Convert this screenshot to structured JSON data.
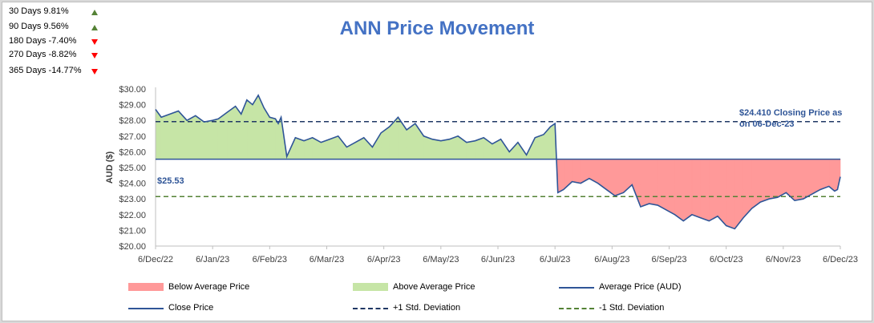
{
  "stats": [
    {
      "label": "30 Days 9.81%",
      "direction": "up"
    },
    {
      "label": "90 Days 9.56%",
      "direction": "up"
    },
    {
      "label": "180 Days -7.40%",
      "direction": "down"
    },
    {
      "label": "270 Days -8.82%",
      "direction": "down"
    },
    {
      "label": "365 Days -14.77%",
      "direction": "down"
    }
  ],
  "chart_data": {
    "type": "line",
    "title": "ANN Price Movement",
    "ylabel": "AUD ($)",
    "xlabel": "",
    "ylim": [
      20,
      30
    ],
    "y_ticks": [
      "$20.00",
      "$21.00",
      "$22.00",
      "$23.00",
      "$24.00",
      "$25.00",
      "$26.00",
      "$27.00",
      "$28.00",
      "$29.00",
      "$30.00"
    ],
    "x_ticks": [
      "6/Dec/22",
      "6/Jan/23",
      "6/Feb/23",
      "6/Mar/23",
      "6/Apr/23",
      "6/May/23",
      "6/Jun/23",
      "6/Jul/23",
      "6/Aug/23",
      "6/Sep/23",
      "6/Oct/23",
      "6/Nov/23",
      "6/Dec/23"
    ],
    "average_price": 25.53,
    "plus_1_std": 27.92,
    "minus_1_std": 23.15,
    "closing_price": 24.41,
    "annotations": {
      "closing": "$24.410 Closing Price as on 06-Dec-23",
      "average": "$25.53"
    },
    "series": [
      {
        "name": "Close Price",
        "x_month_index": [
          0,
          0.1,
          0.25,
          0.4,
          0.55,
          0.7,
          0.85,
          1.0,
          1.1,
          1.25,
          1.4,
          1.5,
          1.6,
          1.7,
          1.8,
          1.9,
          2.0,
          2.1,
          2.15,
          2.2,
          2.3,
          2.45,
          2.6,
          2.75,
          2.9,
          3.05,
          3.2,
          3.35,
          3.5,
          3.65,
          3.8,
          3.95,
          4.1,
          4.25,
          4.4,
          4.55,
          4.7,
          4.85,
          5.0,
          5.15,
          5.3,
          5.45,
          5.6,
          5.75,
          5.9,
          6.05,
          6.2,
          6.35,
          6.5,
          6.65,
          6.8,
          6.92,
          7.0,
          7.05,
          7.15,
          7.3,
          7.45,
          7.6,
          7.75,
          7.9,
          8.05,
          8.2,
          8.35,
          8.5,
          8.65,
          8.8,
          8.95,
          9.1,
          9.25,
          9.4,
          9.55,
          9.7,
          9.85,
          10.0,
          10.15,
          10.3,
          10.45,
          10.6,
          10.75,
          10.9,
          11.05,
          11.2,
          11.35,
          11.5,
          11.65,
          11.8,
          11.9,
          11.95,
          12.0
        ],
        "values": [
          28.7,
          28.2,
          28.4,
          28.6,
          28.0,
          28.3,
          27.9,
          28.0,
          28.1,
          28.5,
          28.9,
          28.4,
          29.3,
          29.0,
          29.6,
          28.8,
          28.2,
          28.1,
          27.8,
          28.2,
          25.7,
          26.9,
          26.7,
          26.9,
          26.6,
          26.8,
          27.0,
          26.3,
          26.6,
          26.9,
          26.3,
          27.2,
          27.6,
          28.2,
          27.4,
          27.8,
          27.0,
          26.8,
          26.7,
          26.8,
          27.0,
          26.6,
          26.7,
          26.9,
          26.5,
          26.8,
          26.0,
          26.6,
          25.8,
          26.9,
          27.1,
          27.6,
          27.8,
          23.4,
          23.6,
          24.1,
          24.0,
          24.3,
          24.0,
          23.6,
          23.2,
          23.4,
          23.9,
          22.5,
          22.7,
          22.6,
          22.3,
          22.0,
          21.6,
          22.0,
          21.8,
          21.6,
          21.9,
          21.3,
          21.1,
          21.8,
          22.4,
          22.8,
          23.0,
          23.1,
          23.4,
          22.9,
          23.0,
          23.3,
          23.6,
          23.8,
          23.5,
          23.6,
          24.41
        ]
      }
    ],
    "legend": [
      {
        "label": "Below Average Price",
        "kind": "fill",
        "color": "#ff9999"
      },
      {
        "label": "Above Average Price",
        "kind": "fill",
        "color": "#c6e5a6"
      },
      {
        "label": "Average Price (AUD)",
        "kind": "line",
        "color": "#2f5597"
      },
      {
        "label": "Close Price",
        "kind": "line",
        "color": "#2f5597"
      },
      {
        "label": "+1 Std. Deviation",
        "kind": "dash",
        "color": "#203864"
      },
      {
        "label": "-1 Std. Deviation",
        "kind": "dash",
        "color": "#548235"
      }
    ],
    "colors": {
      "below_fill": "#ff9999",
      "above_fill": "#c6e5a6",
      "close_line": "#2f5597",
      "average_line": "#2f5597",
      "plus_std": "#203864",
      "minus_std": "#548235",
      "axis": "#bfbfbf"
    }
  }
}
